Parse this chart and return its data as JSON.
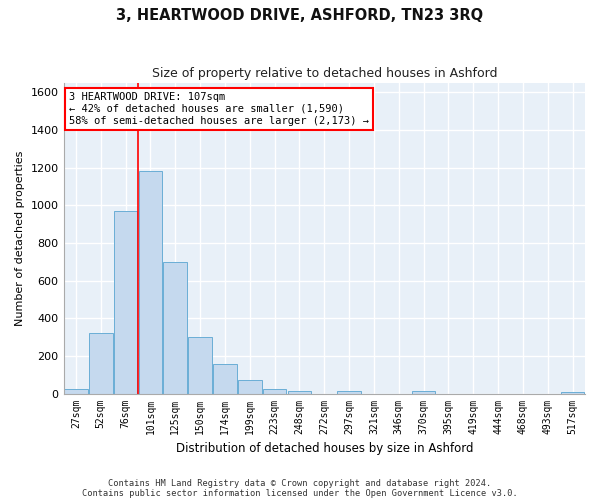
{
  "title": "3, HEARTWOOD DRIVE, ASHFORD, TN23 3RQ",
  "subtitle": "Size of property relative to detached houses in Ashford",
  "xlabel": "Distribution of detached houses by size in Ashford",
  "ylabel": "Number of detached properties",
  "bar_color": "#c5d9ee",
  "bar_edge_color": "#6aaed6",
  "bg_color": "#e8f0f8",
  "grid_color": "#ffffff",
  "fig_bg_color": "#ffffff",
  "categories": [
    "27sqm",
    "52sqm",
    "76sqm",
    "101sqm",
    "125sqm",
    "150sqm",
    "174sqm",
    "199sqm",
    "223sqm",
    "248sqm",
    "272sqm",
    "297sqm",
    "321sqm",
    "346sqm",
    "370sqm",
    "395sqm",
    "419sqm",
    "444sqm",
    "468sqm",
    "493sqm",
    "517sqm"
  ],
  "values": [
    25,
    320,
    970,
    1185,
    700,
    300,
    155,
    70,
    25,
    15,
    0,
    15,
    0,
    0,
    15,
    0,
    0,
    0,
    0,
    0,
    10
  ],
  "ylim": [
    0,
    1650
  ],
  "yticks": [
    0,
    200,
    400,
    600,
    800,
    1000,
    1200,
    1400,
    1600
  ],
  "marker_bin_index": 3,
  "annotation_text": "3 HEARTWOOD DRIVE: 107sqm\n← 42% of detached houses are smaller (1,590)\n58% of semi-detached houses are larger (2,173) →",
  "footnote_line1": "Contains HM Land Registry data © Crown copyright and database right 2024.",
  "footnote_line2": "Contains public sector information licensed under the Open Government Licence v3.0.",
  "figsize": [
    6.0,
    5.0
  ],
  "dpi": 100
}
